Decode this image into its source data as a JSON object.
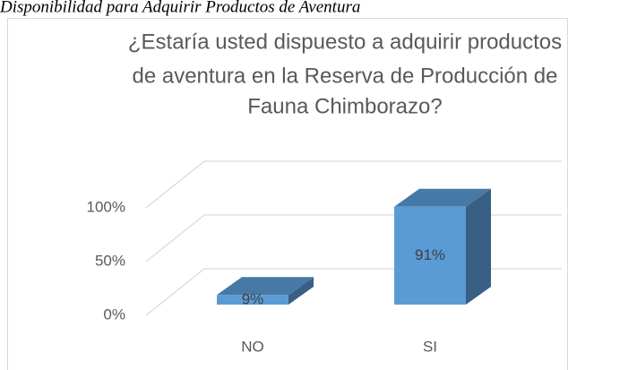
{
  "caption": "Disponibilidad para Adquirir Productos de Aventura",
  "chart_data": {
    "type": "bar3d",
    "title": [
      "¿Estaría usted dispuesto a adquirir productos",
      "de aventura en la Reserva de Producción de",
      "Fauna Chimborazo?"
    ],
    "categories": [
      "NO",
      "SI"
    ],
    "values": [
      9,
      91
    ],
    "value_labels": [
      "9%",
      "91%"
    ],
    "color": "#5b9bd5",
    "ylim": [
      0,
      100
    ],
    "yticks": [
      {
        "value": 0,
        "label": "0%"
      },
      {
        "value": 50,
        "label": "50%"
      },
      {
        "value": 100,
        "label": "100%"
      }
    ],
    "grid": true
  }
}
